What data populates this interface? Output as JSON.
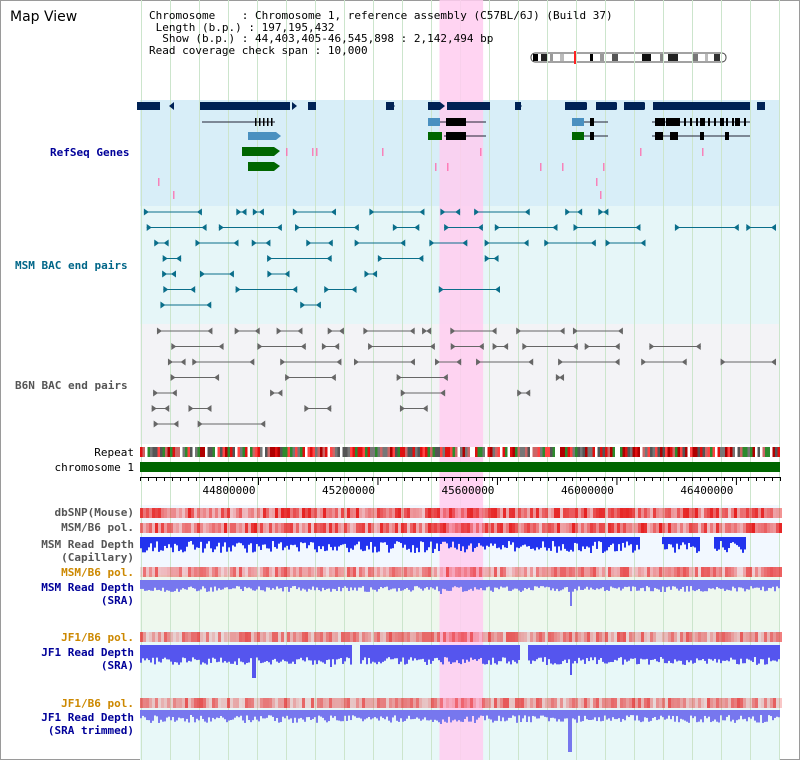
{
  "page": {
    "title": "Map View"
  },
  "chromosome_info": {
    "chromosome_label": "Chromosome",
    "chromosome_value": "Chromosome 1, reference assembly (C57BL/6J) (Build 37)",
    "length_label": "Length (b.p.)",
    "length_value": "197,195,432",
    "show_label": "Show (b.p.)",
    "show_value": "44,403,405-46,545,898 : 2,142,494 bp",
    "coverage_label": "Read coverage check span",
    "coverage_value": "10,000"
  },
  "view": {
    "start": 44403405,
    "end": 46545898,
    "highlight_start": 45406000,
    "highlight_end": 45552000
  },
  "axis": {
    "ticks": [
      "44800000",
      "45200000",
      "45600000",
      "46000000",
      "46400000"
    ],
    "tick_values": [
      44800000,
      45200000,
      45600000,
      46000000,
      46400000
    ]
  },
  "tracks": {
    "refseq": "RefSeq Genes",
    "msm_bac": "MSM BAC end pairs",
    "b6n_bac": "B6N BAC end pairs",
    "repeat": "Repeat",
    "chromosome": "chromosome 1",
    "dbsnp": "dbSNP(Mouse)",
    "msm_pol": "MSM/B6 pol.",
    "msm_depth_cap_1": "MSM Read Depth",
    "msm_depth_cap_2": "(Capillary)",
    "msm_pol2": "MSM/B6 pol.",
    "msm_depth_sra_1": "MSM Read Depth",
    "msm_depth_sra_2": "(SRA)",
    "jf1_pol": "JF1/B6 pol.",
    "jf1_depth_sra_1": "JF1 Read Depth",
    "jf1_depth_sra_2": "(SRA)",
    "jf1_pol2": "JF1/B6 pol.",
    "jf1_depth_trim_1": "JF1 Read Depth",
    "jf1_depth_trim_2": "(SRA trimmed)"
  },
  "colors": {
    "refseq_label": "#000099",
    "msm_bac_label": "#006688",
    "b6n_label": "#555555",
    "pol_label": "#cc8800",
    "depth_label": "#000099",
    "gene_navy": "#002255",
    "gene_green": "#006600",
    "gene_blue": "#4a90c0",
    "highlight": "#ffccf0",
    "chromosome_bar": "#006600"
  }
}
